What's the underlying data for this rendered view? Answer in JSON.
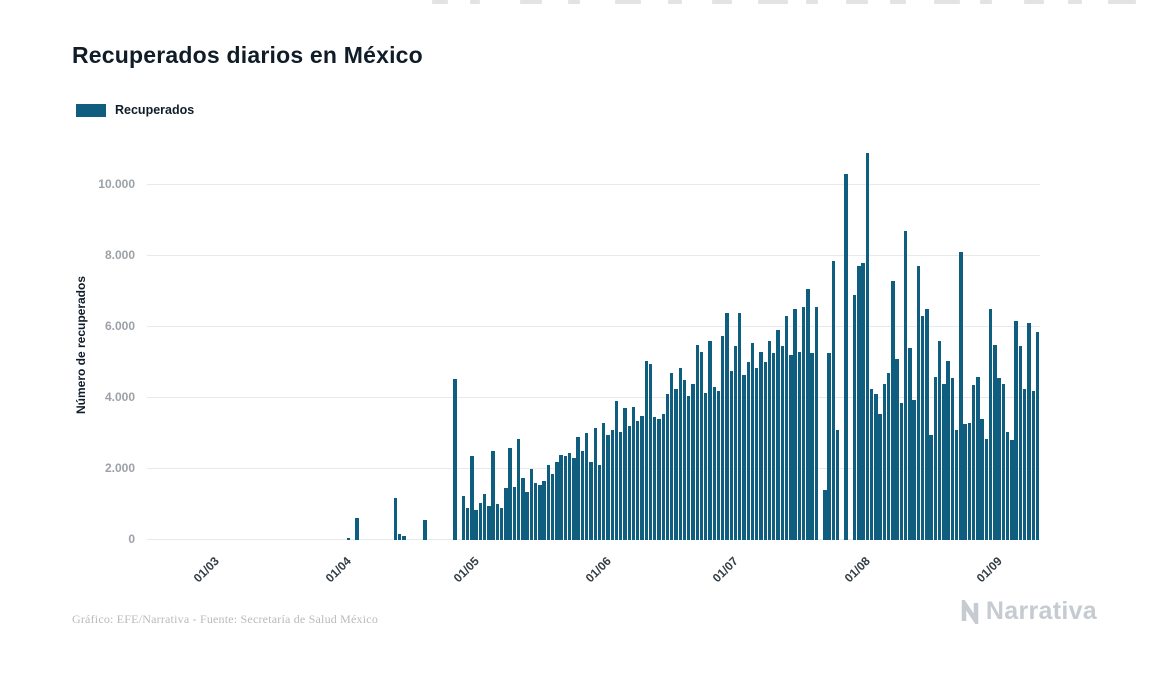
{
  "title": "Recuperados diarios en México",
  "legend": {
    "label": "Recuperados",
    "color": "#0f5d7f"
  },
  "footer": {
    "credit": "Gráfico: EFE/Narrativa - Fuente: Secretaría de Salud México"
  },
  "logo": {
    "text": "Narrativa"
  },
  "chart_data": {
    "type": "bar",
    "title": "Recuperados diarios en México",
    "xlabel": "",
    "ylabel": "Número de recuperados",
    "ylim": [
      0,
      11000
    ],
    "grid": true,
    "legend_position": "top-left",
    "bar_color": "#0f5d7f",
    "series_name": "Recuperados",
    "x_unit": "day",
    "x_tick_labels": [
      "01/03",
      "01/04",
      "01/05",
      "01/06",
      "01/07",
      "01/08",
      "01/09"
    ],
    "x_tick_day_index": [
      15,
      46,
      76,
      107,
      137,
      168,
      199
    ],
    "y_tick_values": [
      0,
      2000,
      4000,
      6000,
      8000,
      10000
    ],
    "y_tick_labels": [
      "0",
      "2.000",
      "4.000",
      "6.000",
      "8.000",
      "10.000"
    ],
    "values": [
      0,
      0,
      0,
      0,
      0,
      0,
      0,
      0,
      0,
      0,
      0,
      0,
      0,
      0,
      0,
      0,
      0,
      0,
      0,
      0,
      0,
      0,
      0,
      0,
      0,
      0,
      0,
      0,
      0,
      0,
      0,
      0,
      0,
      0,
      0,
      0,
      0,
      0,
      0,
      0,
      0,
      0,
      0,
      0,
      0,
      0,
      0,
      60,
      0,
      620,
      0,
      0,
      0,
      0,
      0,
      0,
      0,
      0,
      1190,
      160,
      100,
      0,
      0,
      0,
      0,
      550,
      0,
      0,
      0,
      0,
      0,
      0,
      4530,
      0,
      1250,
      900,
      2350,
      850,
      1050,
      1300,
      950,
      2500,
      1000,
      900,
      1450,
      2600,
      1500,
      2850,
      1750,
      1350,
      2000,
      1600,
      1550,
      1650,
      2100,
      1850,
      2200,
      2400,
      2350,
      2450,
      2300,
      2900,
      2500,
      3000,
      2200,
      3150,
      2100,
      3300,
      2950,
      3100,
      3900,
      3050,
      3700,
      3200,
      3750,
      3350,
      3500,
      5050,
      4950,
      3450,
      3400,
      3550,
      4100,
      4700,
      4250,
      4850,
      4500,
      4050,
      4400,
      5500,
      5300,
      4150,
      5600,
      4300,
      4200,
      5750,
      6400,
      4750,
      5450,
      6400,
      4650,
      5000,
      5550,
      4850,
      5300,
      5000,
      5600,
      5250,
      5900,
      5450,
      6300,
      5200,
      6500,
      5300,
      6550,
      7050,
      5250,
      6550,
      0,
      1400,
      5250,
      7850,
      3100,
      0,
      10300,
      0,
      6900,
      7700,
      7800,
      10900,
      4250,
      4100,
      3550,
      4400,
      4700,
      7300,
      5100,
      3850,
      8700,
      5400,
      3950,
      7700,
      6300,
      6500,
      2950,
      4600,
      5600,
      4400,
      5050,
      4550,
      3100,
      8100,
      3250,
      3300,
      4350,
      4600,
      3400,
      2850,
      6500,
      5500,
      4550,
      4400,
      3050,
      2800,
      6150,
      5450,
      4250,
      6100,
      4200,
      5850
    ]
  }
}
